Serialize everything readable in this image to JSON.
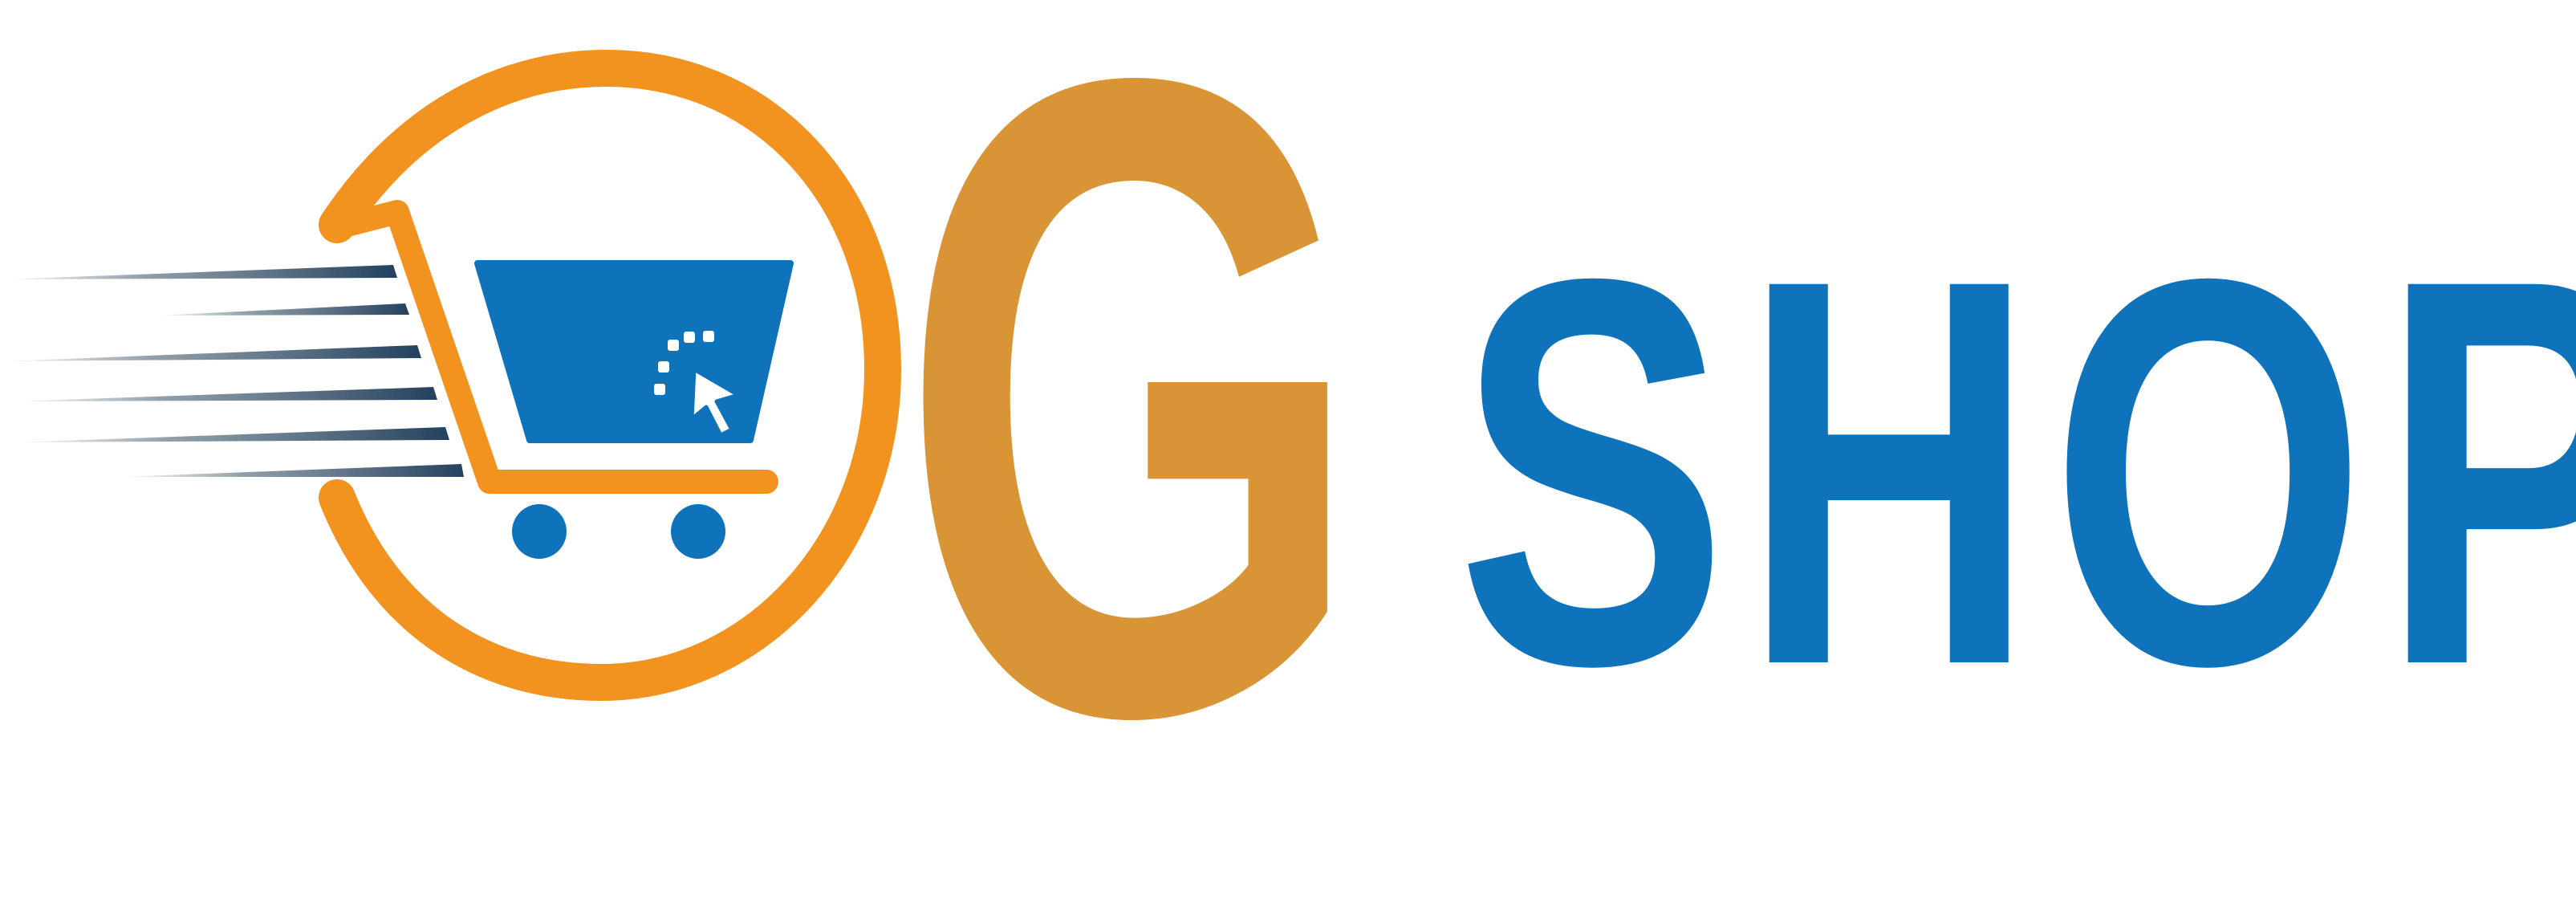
{
  "logo": {
    "letter": "G",
    "word": "SHOP",
    "icon": "shopping-cart-with-speed-lines-and-cursor",
    "colors": {
      "orange": "#F2931F",
      "gold": "#D89435",
      "blue": "#0E73BB",
      "speed_line": "#3A5266"
    }
  }
}
